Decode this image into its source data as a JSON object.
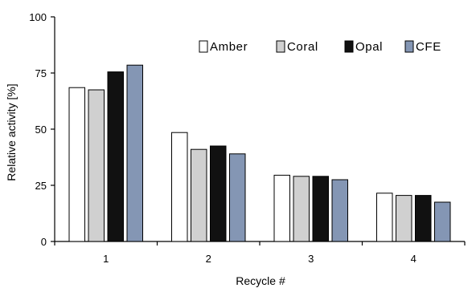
{
  "chart_data": {
    "type": "bar",
    "title": "",
    "xlabel": "Recycle #",
    "ylabel": "Relative activity [%]",
    "ylim": [
      0,
      100
    ],
    "yticks": [
      0,
      25,
      50,
      75,
      100
    ],
    "categories": [
      "1",
      "2",
      "3",
      "4"
    ],
    "series": [
      {
        "name": "Amber",
        "color": "#ffffff",
        "values": [
          68.5,
          48.5,
          29.5,
          21.5
        ]
      },
      {
        "name": "Coral",
        "color": "#d0d0d0",
        "values": [
          67.5,
          41.0,
          29.0,
          20.5
        ]
      },
      {
        "name": "Opal",
        "color": "#111111",
        "values": [
          75.5,
          42.5,
          29.0,
          20.5
        ]
      },
      {
        "name": "CFE",
        "color": "#8496b4",
        "values": [
          78.5,
          39.0,
          27.5,
          17.5
        ]
      }
    ],
    "grid": false,
    "legend": "top-right"
  }
}
